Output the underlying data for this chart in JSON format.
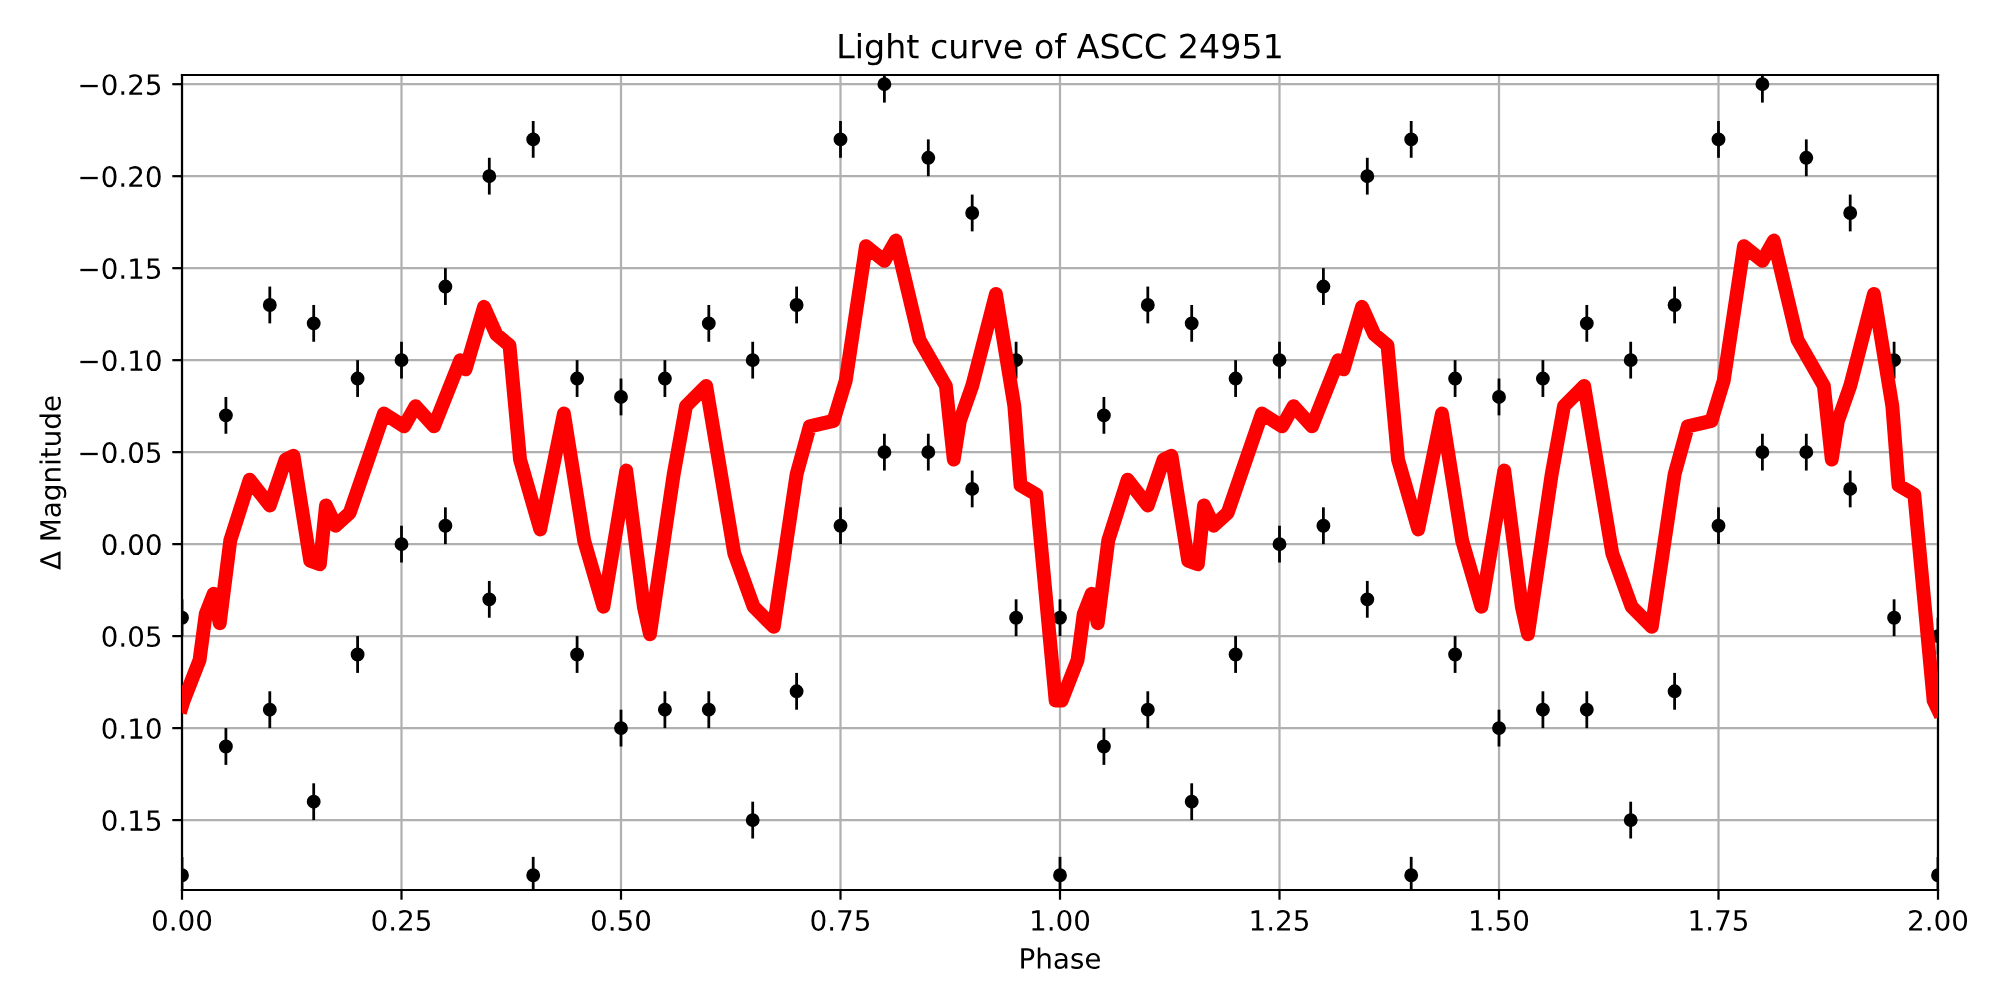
{
  "chart_data": {
    "type": "scatter",
    "title": "Light curve of ASCC 24951",
    "xlabel": "Phase",
    "ylabel": "Δ Magnitude",
    "xlim": [
      0,
      2
    ],
    "ylim": [
      0.188,
      -0.255
    ],
    "xticks": [
      {
        "value": 0,
        "label": "0.00"
      },
      {
        "value": 0.25,
        "label": "0.25"
      },
      {
        "value": 0.5,
        "label": "0.50"
      },
      {
        "value": 0.75,
        "label": "0.75"
      },
      {
        "value": 1,
        "label": "1.00"
      },
      {
        "value": 1.25,
        "label": "1.25"
      },
      {
        "value": 1.5,
        "label": "1.50"
      },
      {
        "value": 1.75,
        "label": "1.75"
      },
      {
        "value": 2,
        "label": "2.00"
      }
    ],
    "yticks": [
      {
        "value": -0.25,
        "label": "−0.25"
      },
      {
        "value": -0.2,
        "label": "−0.20"
      },
      {
        "value": -0.15,
        "label": "−0.15"
      },
      {
        "value": -0.1,
        "label": "−0.10"
      },
      {
        "value": -0.05,
        "label": "−0.05"
      },
      {
        "value": 0,
        "label": "0.00"
      },
      {
        "value": 0.05,
        "label": "0.05"
      },
      {
        "value": 0.1,
        "label": "0.10"
      },
      {
        "value": 0.15,
        "label": "0.15"
      }
    ],
    "grid": true,
    "series": [
      {
        "marker": "circle",
        "color": "#000000",
        "x": [
          0,
          0.05,
          0.1,
          0.15,
          0.2,
          0.25,
          0.3,
          0.35,
          0.4,
          0.45,
          0.5,
          0.55,
          0.6,
          0.65,
          0.7,
          0.75,
          0.8,
          0.85,
          0.9,
          0.95,
          0,
          0.05,
          0.1,
          0.15,
          0.2,
          0.25,
          0.3,
          0.35,
          0.4,
          0.45,
          0.5,
          0.55,
          0.6,
          0.65,
          0.7,
          0.75,
          0.8,
          0.85,
          0.9,
          0.95,
          1,
          1.05,
          1.1,
          1.15,
          1.2,
          1.25,
          1.3,
          1.35,
          1.4,
          1.45,
          1.5,
          1.55,
          1.6,
          1.65,
          1.7,
          1.75,
          1.8,
          1.85,
          1.9,
          1.95,
          1,
          1.05,
          1.1,
          1.15,
          1.2,
          1.25,
          1.3,
          1.35,
          1.4,
          1.45,
          1.5,
          1.55,
          1.6,
          1.65,
          1.7,
          1.75,
          1.8,
          1.85,
          1.9,
          1.95,
          2,
          2
        ],
        "values": [
          0.04,
          -0.07,
          -0.13,
          -0.12,
          -0.09,
          -0.1,
          -0.14,
          -0.2,
          -0.22,
          -0.09,
          -0.08,
          -0.09,
          -0.12,
          -0.1,
          -0.13,
          -0.22,
          -0.25,
          -0.21,
          -0.18,
          -0.1,
          0.18,
          0.11,
          0.09,
          0.14,
          0.06,
          0.0,
          -0.01,
          0.03,
          0.18,
          0.06,
          0.1,
          0.09,
          0.09,
          0.15,
          0.08,
          -0.01,
          -0.05,
          -0.05,
          -0.03,
          0.04,
          0.04,
          -0.07,
          -0.13,
          -0.12,
          -0.09,
          -0.1,
          -0.14,
          -0.2,
          -0.22,
          -0.09,
          -0.08,
          -0.09,
          -0.12,
          -0.1,
          -0.13,
          -0.22,
          -0.25,
          -0.21,
          -0.18,
          -0.1,
          0.18,
          0.11,
          0.09,
          0.14,
          0.06,
          0.0,
          -0.01,
          0.03,
          0.18,
          0.06,
          0.1,
          0.09,
          0.09,
          0.15,
          0.08,
          -0.01,
          -0.05,
          -0.05,
          -0.03,
          0.04,
          0.05,
          0.18
        ],
        "errors": [
          0.01,
          0.01,
          0.01,
          0.01,
          0.01,
          0.01,
          0.01,
          0.01,
          0.01,
          0.01,
          0.01,
          0.01,
          0.01,
          0.01,
          0.01,
          0.01,
          0.01,
          0.01,
          0.01,
          0.01,
          0.01,
          0.01,
          0.01,
          0.01,
          0.01,
          0.01,
          0.01,
          0.01,
          0.01,
          0.01,
          0.01,
          0.01,
          0.01,
          0.01,
          0.01,
          0.01,
          0.01,
          0.01,
          0.01,
          0.01,
          0.01,
          0.01,
          0.01,
          0.01,
          0.01,
          0.01,
          0.01,
          0.01,
          0.01,
          0.01,
          0.01,
          0.01,
          0.01,
          0.01,
          0.01,
          0.01,
          0.01,
          0.01,
          0.01,
          0.01,
          0.01,
          0.01,
          0.01,
          0.01,
          0.01,
          0.01,
          0.01,
          0.01,
          0.01,
          0.01,
          0.01,
          0.01,
          0.01,
          0.01,
          0.01,
          0.01,
          0.01,
          0.01,
          0.01,
          0.01,
          0.01,
          0.01
        ]
      },
      {
        "type": "line",
        "color": "#ff0000",
        "marker": "none",
        "line_style": "solid",
        "x": [
          0,
          0.002,
          0.02,
          0.027,
          0.036,
          0.043,
          0.055,
          0.077,
          0.1,
          0.118,
          0.127,
          0.146,
          0.157,
          0.164,
          0.175,
          0.191,
          0.23,
          0.253,
          0.266,
          0.287,
          0.317,
          0.323,
          0.344,
          0.358,
          0.373,
          0.385,
          0.408,
          0.435,
          0.458,
          0.48,
          0.506,
          0.526,
          0.533,
          0.56,
          0.574,
          0.597,
          0.629,
          0.651,
          0.674,
          0.7,
          0.715,
          0.742,
          0.756,
          0.779,
          0.8,
          0.813,
          0.84,
          0.87,
          0.879,
          0.886,
          0.9,
          0.927,
          0.948,
          0.955,
          0.973,
          0.995,
          1.002,
          1.02,
          1.027,
          1.036,
          1.043,
          1.055,
          1.077,
          1.1,
          1.118,
          1.127,
          1.146,
          1.157,
          1.164,
          1.175,
          1.191,
          1.23,
          1.253,
          1.266,
          1.287,
          1.317,
          1.323,
          1.344,
          1.358,
          1.373,
          1.385,
          1.408,
          1.435,
          1.458,
          1.48,
          1.506,
          1.526,
          1.533,
          1.56,
          1.574,
          1.597,
          1.629,
          1.651,
          1.674,
          1.7,
          1.715,
          1.742,
          1.756,
          1.779,
          1.8,
          1.813,
          1.84,
          1.87,
          1.879,
          1.886,
          1.9,
          1.927,
          1.948,
          1.955,
          1.973,
          1.995,
          2
        ],
        "values": [
          0.088,
          0.085,
          0.063,
          0.038,
          0.027,
          0.043,
          -0.002,
          -0.035,
          -0.021,
          -0.046,
          -0.048,
          0.009,
          0.011,
          -0.021,
          -0.01,
          -0.017,
          -0.071,
          -0.064,
          -0.075,
          -0.064,
          -0.1,
          -0.095,
          -0.129,
          -0.114,
          -0.108,
          -0.046,
          -0.008,
          -0.071,
          -0.002,
          0.034,
          -0.04,
          0.034,
          0.049,
          -0.038,
          -0.075,
          -0.086,
          0.005,
          0.034,
          0.045,
          -0.038,
          -0.064,
          -0.067,
          -0.089,
          -0.162,
          -0.154,
          -0.165,
          -0.111,
          -0.086,
          -0.046,
          -0.067,
          -0.086,
          -0.136,
          -0.075,
          -0.032,
          -0.027,
          0.085,
          0.085,
          0.063,
          0.038,
          0.027,
          0.043,
          -0.002,
          -0.035,
          -0.021,
          -0.046,
          -0.048,
          0.009,
          0.011,
          -0.021,
          -0.01,
          -0.017,
          -0.071,
          -0.064,
          -0.075,
          -0.064,
          -0.1,
          -0.095,
          -0.129,
          -0.114,
          -0.108,
          -0.046,
          -0.008,
          -0.071,
          -0.002,
          0.034,
          -0.04,
          0.034,
          0.049,
          -0.038,
          -0.075,
          -0.086,
          0.005,
          0.034,
          0.045,
          -0.038,
          -0.064,
          -0.067,
          -0.089,
          -0.162,
          -0.154,
          -0.165,
          -0.111,
          -0.086,
          -0.046,
          -0.067,
          -0.086,
          -0.136,
          -0.075,
          -0.032,
          -0.027,
          0.085,
          0.09
        ]
      }
    ]
  }
}
